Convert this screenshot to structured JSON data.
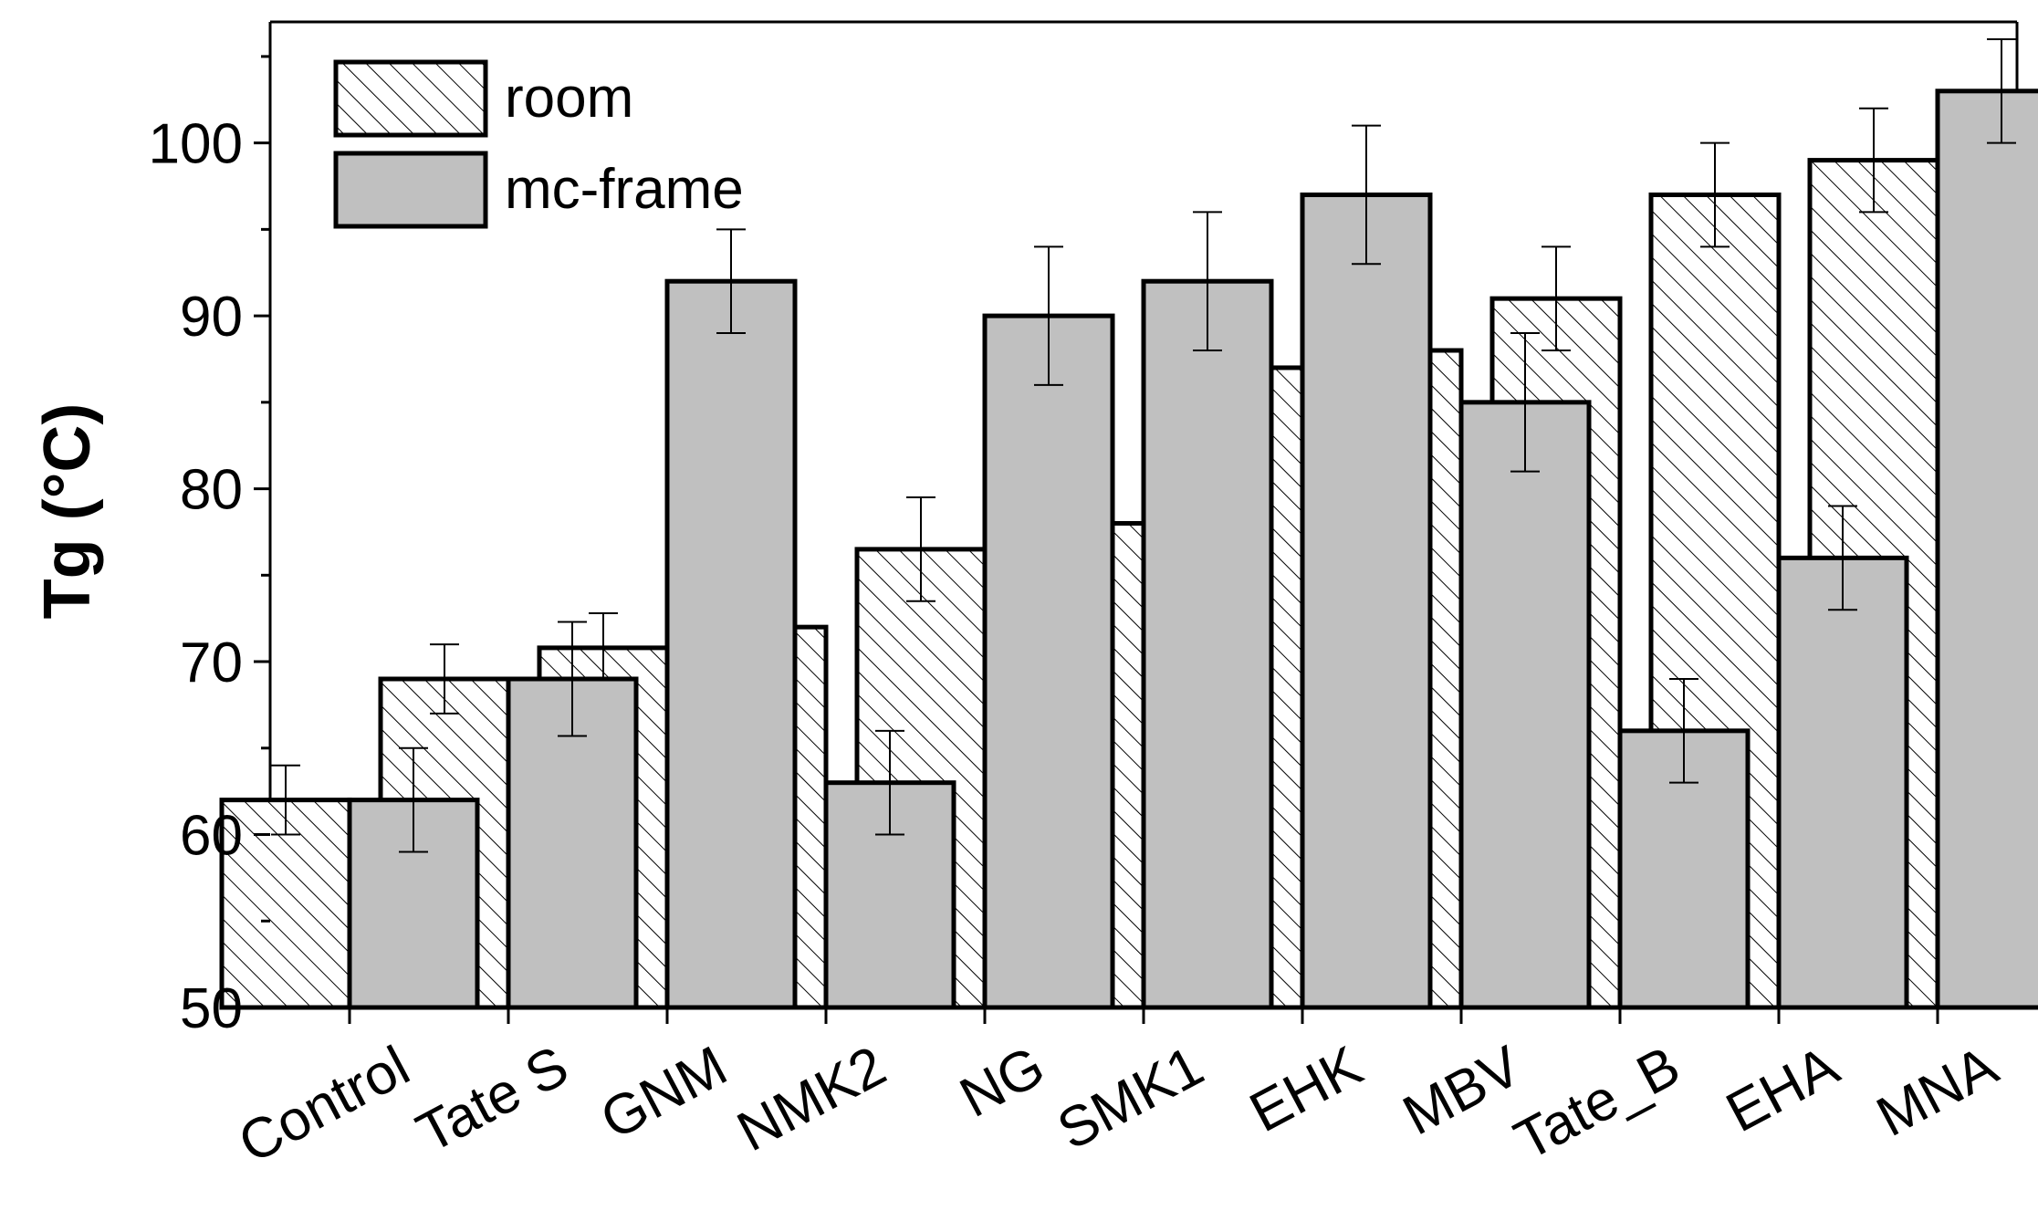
{
  "chart_data": {
    "type": "bar",
    "ylabel": "Tg (°C)",
    "xlabel": "",
    "ylim": [
      50,
      107
    ],
    "yticks": [
      50,
      60,
      70,
      80,
      90,
      100
    ],
    "grid": false,
    "legend_position": "top-left",
    "categories": [
      "Control",
      "Tate S",
      "GNM",
      "NMK2",
      "NG",
      "SMK1",
      "EHK",
      "MBV",
      "Tate_B",
      "EHA",
      "MNA"
    ],
    "series": [
      {
        "name": "room",
        "fill": "hatched",
        "values": [
          62,
          69,
          70.8,
          72,
          76.5,
          78,
          87,
          88,
          91,
          97,
          99
        ],
        "errors": [
          2,
          2,
          2,
          2,
          3,
          3,
          3,
          3,
          3,
          3,
          3
        ]
      },
      {
        "name": "mc-frame",
        "fill": "#c0c0c0",
        "values": [
          62,
          69,
          92,
          63,
          90,
          92,
          97,
          85,
          66,
          76,
          103
        ],
        "errors": [
          3,
          3.3,
          3,
          3,
          4,
          4,
          4,
          4,
          3,
          3,
          3
        ]
      }
    ]
  }
}
